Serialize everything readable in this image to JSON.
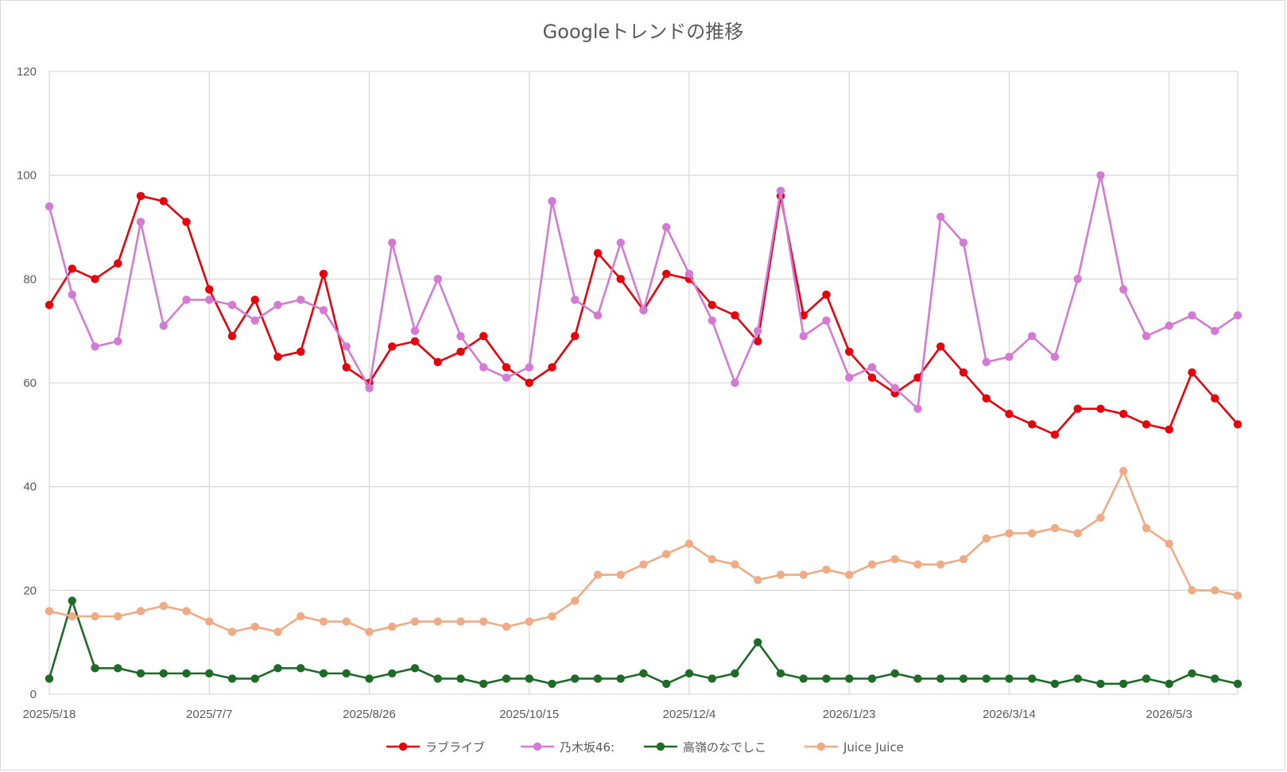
{
  "chart_data": {
    "type": "line",
    "title": "Googleトレンドの推移",
    "ylim": [
      0,
      120
    ],
    "yticks": [
      0,
      20,
      40,
      60,
      80,
      100,
      120
    ],
    "xtick_labels": [
      "2025/5/18",
      "2025/7/7",
      "2025/8/26",
      "2025/10/15",
      "2025/12/4",
      "2026/1/23",
      "2026/3/14",
      "2026/5/3"
    ],
    "xtick_indices": [
      0,
      7,
      14,
      21,
      28,
      35,
      42,
      49
    ],
    "grid": true,
    "legend_position": "bottom",
    "series": [
      {
        "name": "ラブライブ",
        "color": "#e8000b",
        "values": [
          75,
          82,
          80,
          83,
          96,
          95,
          91,
          78,
          69,
          76,
          65,
          66,
          81,
          63,
          60,
          67,
          68,
          64,
          66,
          69,
          63,
          60,
          63,
          69,
          85,
          80,
          74,
          81,
          80,
          75,
          73,
          68,
          96,
          73,
          77,
          66,
          61,
          58,
          61,
          67,
          62,
          57,
          54,
          52,
          50,
          55,
          55,
          54,
          52,
          51,
          62,
          57,
          52
        ]
      },
      {
        "name": "乃木坂46:",
        "color": "#d47ad4",
        "values": [
          94,
          77,
          67,
          68,
          91,
          71,
          76,
          76,
          75,
          72,
          75,
          76,
          74,
          67,
          59,
          87,
          70,
          80,
          69,
          63,
          61,
          63,
          95,
          76,
          73,
          87,
          74,
          90,
          81,
          72,
          60,
          70,
          97,
          69,
          72,
          61,
          63,
          59,
          55,
          92,
          87,
          64,
          65,
          69,
          65,
          80,
          100,
          78,
          69,
          71,
          73,
          70,
          73
        ]
      },
      {
        "name": "高嶺のなでしこ",
        "color": "#1e6b27",
        "values": [
          3,
          18,
          5,
          5,
          4,
          4,
          4,
          4,
          3,
          3,
          5,
          5,
          4,
          4,
          3,
          4,
          5,
          3,
          3,
          2,
          3,
          3,
          2,
          3,
          3,
          3,
          4,
          2,
          4,
          3,
          4,
          10,
          4,
          3,
          3,
          3,
          3,
          4,
          3,
          3,
          3,
          3,
          3,
          3,
          2,
          3,
          2,
          2,
          3,
          2,
          4,
          3,
          2
        ]
      },
      {
        "name": "Juice Juice",
        "color": "#f0aa84",
        "values": [
          16,
          15,
          15,
          15,
          16,
          17,
          16,
          14,
          12,
          13,
          12,
          15,
          14,
          14,
          12,
          13,
          14,
          14,
          14,
          14,
          13,
          14,
          15,
          18,
          23,
          23,
          25,
          27,
          29,
          26,
          25,
          22,
          23,
          23,
          24,
          23,
          25,
          26,
          25,
          25,
          26,
          30,
          31,
          31,
          32,
          31,
          34,
          43,
          32,
          29,
          20,
          20,
          19
        ]
      }
    ]
  }
}
